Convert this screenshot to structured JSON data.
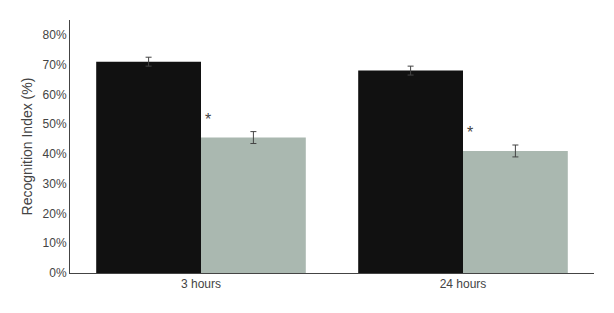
{
  "chart_data": {
    "type": "bar",
    "categories": [
      "3 hours",
      "24 hours"
    ],
    "series": [
      {
        "color": "#111111",
        "values": [
          71,
          68
        ],
        "errors": [
          1.5,
          1.5
        ]
      },
      {
        "color": "#aab8b0",
        "values": [
          45.5,
          41
        ],
        "errors": [
          2.0,
          2.0
        ]
      }
    ],
    "ylabel": "Recognition Index (%)",
    "ylim": [
      0,
      85
    ],
    "yticks": [
      {
        "value": 0,
        "label": "0%"
      },
      {
        "value": 10,
        "label": "10%"
      },
      {
        "value": 20,
        "label": "20%"
      },
      {
        "value": 30,
        "label": "30%"
      },
      {
        "value": 40,
        "label": "40%"
      },
      {
        "value": 50,
        "label": "50%"
      },
      {
        "value": 60,
        "label": "60%"
      },
      {
        "value": 70,
        "label": "70%"
      },
      {
        "value": 80,
        "label": "80%"
      }
    ],
    "annotations": [
      {
        "text": "*",
        "x": "3 hours",
        "y": 47.5
      },
      {
        "text": "*",
        "x": "24 hours",
        "y": 43
      }
    ],
    "grid": false
  }
}
